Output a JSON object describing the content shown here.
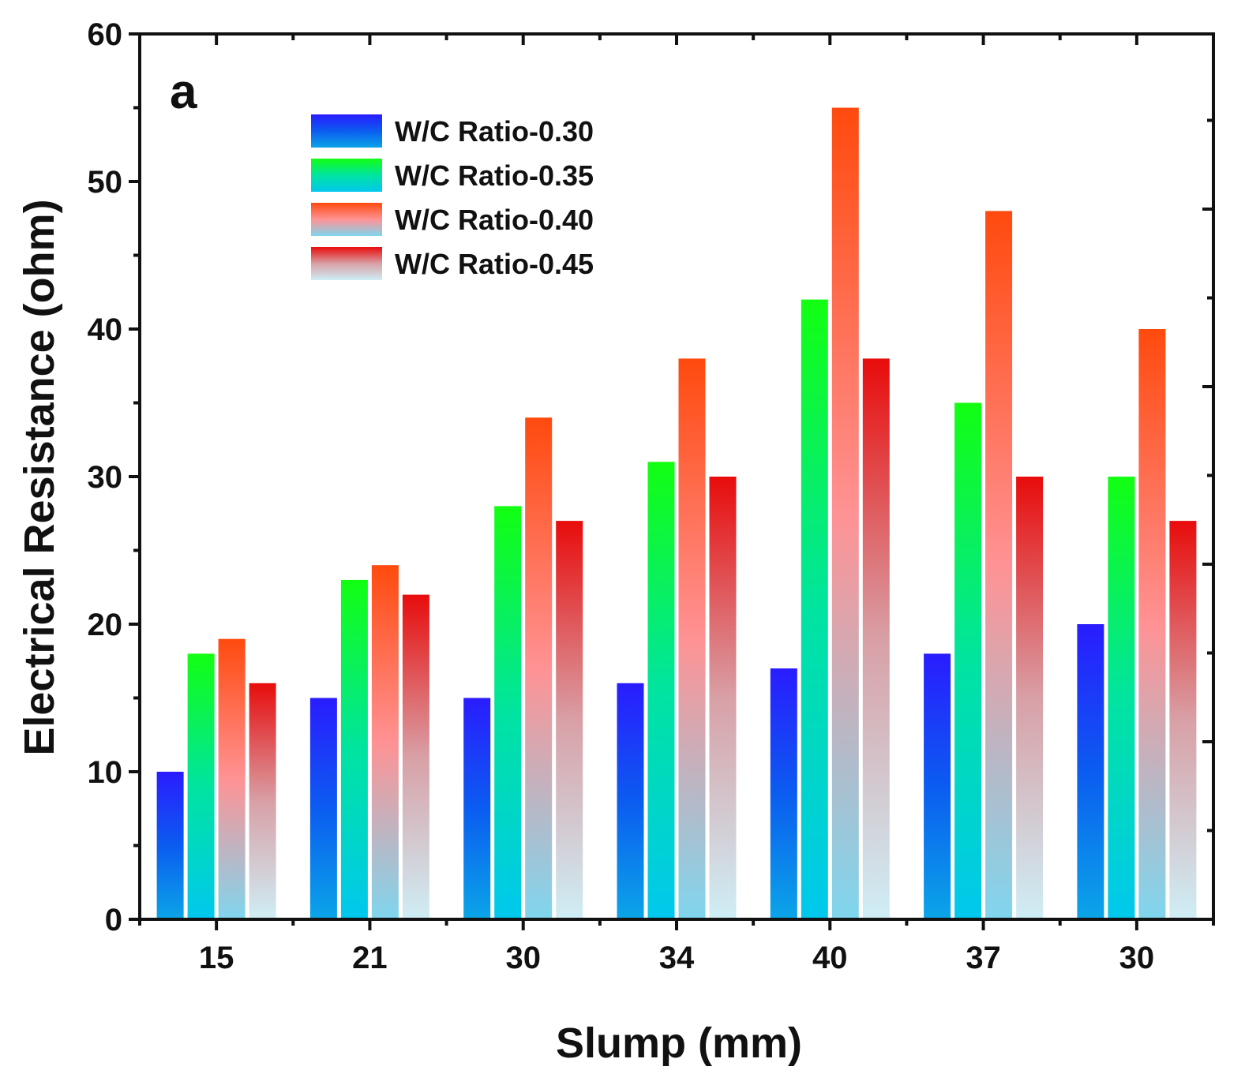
{
  "chart_data": {
    "type": "bar",
    "panel_label": "a",
    "title": "",
    "xlabel": "Slump (mm)",
    "ylabel": "Electrical Resistance (ohm)",
    "ylim": [
      0,
      60
    ],
    "yticks": [
      "0",
      "10",
      "20",
      "30",
      "40",
      "50",
      "60"
    ],
    "categories": [
      "15",
      "21",
      "30",
      "34",
      "40",
      "37",
      "30"
    ],
    "legend_position": "top-left",
    "series": [
      {
        "name": "W/C Ratio-0.30",
        "values": [
          10,
          15,
          15,
          16,
          17,
          18,
          20
        ],
        "color_top": "#2a1cff",
        "color_mid": "#0b5cf0",
        "color_bottom": "#0ba5e8"
      },
      {
        "name": "W/C Ratio-0.35",
        "values": [
          18,
          23,
          28,
          31,
          42,
          35,
          30
        ],
        "color_top": "#12ff12",
        "color_mid": "#00e4a0",
        "color_bottom": "#00c8ee"
      },
      {
        "name": "W/C Ratio-0.40",
        "values": [
          19,
          24,
          34,
          38,
          55,
          48,
          40
        ],
        "color_top": "#ff4a0e",
        "color_mid": "#ff9294",
        "color_bottom": "#7fd6ee"
      },
      {
        "name": "W/C Ratio-0.45",
        "values": [
          16,
          22,
          27,
          30,
          38,
          30,
          27
        ],
        "color_top": "#e80c0c",
        "color_mid": "#d8a0a6",
        "color_bottom": "#cfeef6"
      }
    ]
  }
}
